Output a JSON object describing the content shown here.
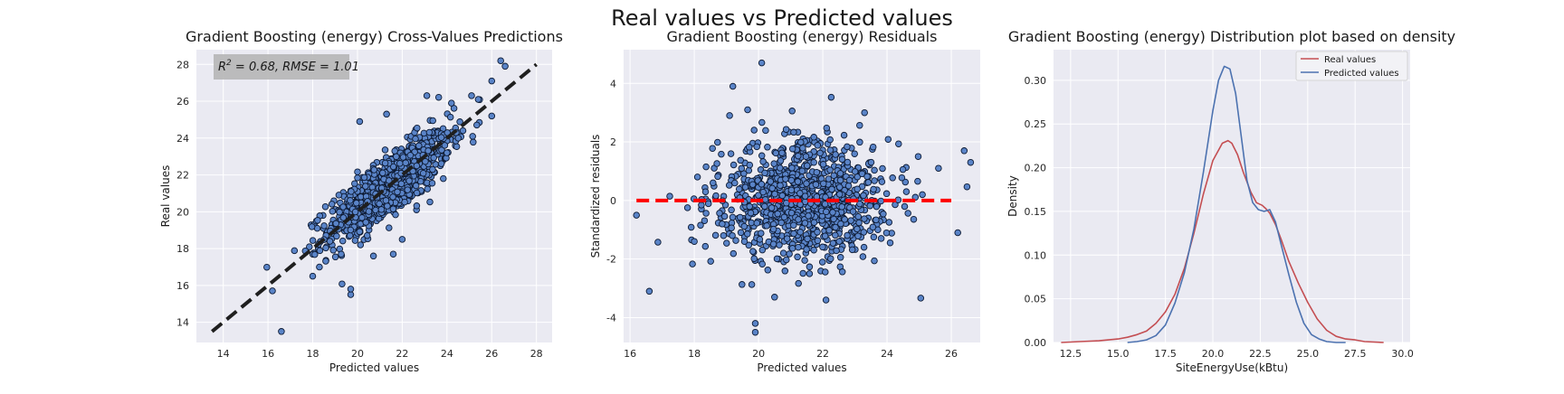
{
  "suptitle": "Real values vs Predicted values",
  "colors": {
    "background": "#eaeaf2",
    "grid": "#ffffff",
    "point_fill": "#5a84c8",
    "point_edge": "#0d1a33",
    "ideal_line": "#1f1f1f",
    "zero_line": "#ff0000",
    "real_kde": "#c44e52",
    "pred_kde": "#4c72b0"
  },
  "chart_data": [
    {
      "type": "scatter",
      "title": "Gradient Boosting (energy) Cross-Values Predictions",
      "xlabel": "Predicted values",
      "ylabel": "Real values",
      "xlim": [
        12.8,
        28.7
      ],
      "ylim": [
        12.9,
        28.8
      ],
      "xticks": [
        14,
        16,
        18,
        20,
        22,
        24,
        26,
        28
      ],
      "yticks": [
        14,
        16,
        18,
        20,
        22,
        24,
        26,
        28
      ],
      "annotation": {
        "r2_label": "R",
        "r2_sup": "2",
        "text": " = 0.68, RMSE = 1.01"
      },
      "reference_line": {
        "x": [
          13.5,
          28
        ],
        "y": [
          13.5,
          28
        ],
        "style": "dashed"
      },
      "point_cloud": {
        "n": 1000,
        "center_x": 21.4,
        "center_y": 21.4,
        "sd_x": 1.35,
        "sd_y": 1.45,
        "corr": 0.82
      },
      "points_outliers": [
        {
          "x": 16.2,
          "y": 15.7
        },
        {
          "x": 16.6,
          "y": 13.5
        },
        {
          "x": 19.7,
          "y": 15.5
        },
        {
          "x": 19.7,
          "y": 15.8
        },
        {
          "x": 20.1,
          "y": 24.9
        },
        {
          "x": 21.3,
          "y": 25.3
        },
        {
          "x": 23.1,
          "y": 26.3
        },
        {
          "x": 24.2,
          "y": 25.9
        },
        {
          "x": 26.0,
          "y": 25.2
        },
        {
          "x": 26.0,
          "y": 27.1
        },
        {
          "x": 26.4,
          "y": 28.2
        },
        {
          "x": 26.6,
          "y": 27.9
        },
        {
          "x": 25.1,
          "y": 26.3
        },
        {
          "x": 25.4,
          "y": 26.1
        },
        {
          "x": 18.0,
          "y": 16.5
        },
        {
          "x": 18.3,
          "y": 17.0
        },
        {
          "x": 21.6,
          "y": 17.7
        },
        {
          "x": 22.0,
          "y": 18.5
        },
        {
          "x": 24.0,
          "y": 23.2
        }
      ]
    },
    {
      "type": "scatter",
      "title": "Gradient Boosting (energy) Residuals",
      "xlabel": "Predicted values",
      "ylabel": "Standardized residuals",
      "xlim": [
        15.8,
        26.9
      ],
      "ylim": [
        -4.85,
        5.15
      ],
      "xticks": [
        16,
        18,
        20,
        22,
        24,
        26
      ],
      "yticks": [
        -4,
        -2,
        0,
        2,
        4
      ],
      "reference_line": {
        "y": 0,
        "x": [
          16.2,
          26.0
        ],
        "style": "dashed"
      },
      "point_cloud": {
        "n": 1000,
        "center_x": 21.4,
        "center_y": 0,
        "sd_x": 1.35,
        "sd_y": 1.0,
        "corr": 0
      },
      "points_outliers": [
        {
          "x": 16.2,
          "y": -0.5
        },
        {
          "x": 16.6,
          "y": -3.1
        },
        {
          "x": 20.1,
          "y": 4.7
        },
        {
          "x": 19.2,
          "y": 3.9
        },
        {
          "x": 19.9,
          "y": -4.2
        },
        {
          "x": 19.9,
          "y": -4.5
        },
        {
          "x": 22.1,
          "y": -3.4
        },
        {
          "x": 20.5,
          "y": -3.3
        },
        {
          "x": 26.4,
          "y": 1.7
        },
        {
          "x": 26.6,
          "y": 1.3
        },
        {
          "x": 26.2,
          "y": -1.1
        },
        {
          "x": 25.6,
          "y": 1.1
        },
        {
          "x": 23.3,
          "y": 3.0
        },
        {
          "x": 18.0,
          "y": -1.4
        },
        {
          "x": 18.1,
          "y": 0.8
        },
        {
          "x": 19.1,
          "y": 2.9
        },
        {
          "x": 24.6,
          "y": 0.3
        },
        {
          "x": 25.1,
          "y": 0.2
        }
      ]
    },
    {
      "type": "line",
      "title": "Gradient Boosting (energy) Distribution plot based on density",
      "xlabel": "SiteEnergyUse(kBtu)",
      "ylabel": "Density",
      "xlim": [
        11.6,
        30.4
      ],
      "ylim": [
        0,
        0.335
      ],
      "xticks": [
        12.5,
        15.0,
        17.5,
        20.0,
        22.5,
        25.0,
        27.5,
        30.0
      ],
      "xtick_labels": [
        "12.5",
        "15.0",
        "17.5",
        "20.0",
        "22.5",
        "25.0",
        "27.5",
        "30.0"
      ],
      "yticks": [
        0,
        0.05,
        0.1,
        0.15,
        0.2,
        0.25,
        0.3
      ],
      "ytick_labels": [
        "0.00",
        "0.05",
        "0.10",
        "0.15",
        "0.20",
        "0.25",
        "0.30"
      ],
      "legend_position": "top-right",
      "series": [
        {
          "name": "Real values",
          "x": [
            12.0,
            13.0,
            14.0,
            15.0,
            15.5,
            16.0,
            16.5,
            17.0,
            17.5,
            18.0,
            18.5,
            19.0,
            19.5,
            20.0,
            20.5,
            20.8,
            21.0,
            21.3,
            21.6,
            22.0,
            22.3,
            22.6,
            22.8,
            23.0,
            23.3,
            23.6,
            24.0,
            24.5,
            25.0,
            25.5,
            26.0,
            26.5,
            27.0,
            27.5,
            28.0,
            29.0
          ],
          "y": [
            0.0,
            0.001,
            0.002,
            0.004,
            0.006,
            0.009,
            0.013,
            0.022,
            0.035,
            0.055,
            0.085,
            0.125,
            0.17,
            0.208,
            0.228,
            0.231,
            0.228,
            0.215,
            0.195,
            0.172,
            0.16,
            0.157,
            0.153,
            0.148,
            0.135,
            0.118,
            0.093,
            0.068,
            0.046,
            0.027,
            0.014,
            0.007,
            0.004,
            0.003,
            0.001,
            0.0
          ]
        },
        {
          "name": "Predicted values",
          "x": [
            15.5,
            16.0,
            16.5,
            17.0,
            17.5,
            18.0,
            18.5,
            19.0,
            19.5,
            20.0,
            20.3,
            20.6,
            20.9,
            21.2,
            21.5,
            21.8,
            22.1,
            22.4,
            22.7,
            23.0,
            23.3,
            23.6,
            24.0,
            24.4,
            24.8,
            25.2,
            25.6,
            26.0,
            26.5,
            27.0
          ],
          "y": [
            0.0,
            0.001,
            0.003,
            0.008,
            0.02,
            0.045,
            0.08,
            0.13,
            0.195,
            0.265,
            0.3,
            0.316,
            0.313,
            0.285,
            0.235,
            0.185,
            0.16,
            0.152,
            0.15,
            0.152,
            0.138,
            0.112,
            0.078,
            0.046,
            0.022,
            0.009,
            0.004,
            0.001,
            0.0,
            0.0
          ]
        }
      ]
    }
  ]
}
